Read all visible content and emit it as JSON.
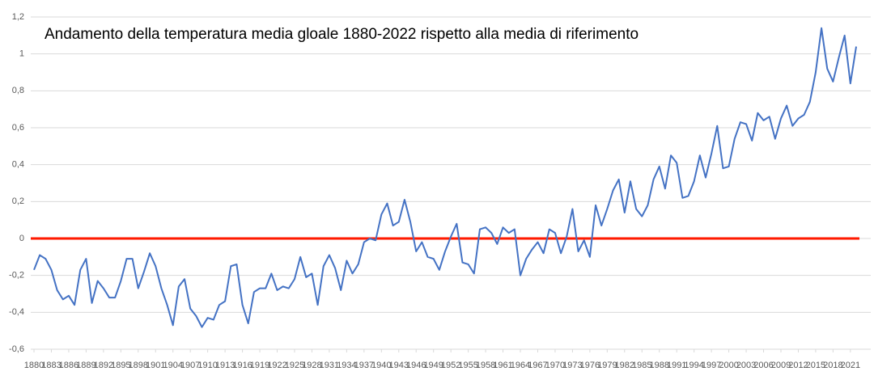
{
  "chart_data": {
    "type": "line",
    "title": "Andamento della temperatura media gloale 1880-2022 rispetto alla media di riferimento",
    "x": [
      1880,
      1881,
      1882,
      1883,
      1884,
      1885,
      1886,
      1887,
      1888,
      1889,
      1890,
      1891,
      1892,
      1893,
      1894,
      1895,
      1896,
      1897,
      1898,
      1899,
      1900,
      1901,
      1902,
      1903,
      1904,
      1905,
      1906,
      1907,
      1908,
      1909,
      1910,
      1911,
      1912,
      1913,
      1914,
      1915,
      1916,
      1917,
      1918,
      1919,
      1920,
      1921,
      1922,
      1923,
      1924,
      1925,
      1926,
      1927,
      1928,
      1929,
      1930,
      1931,
      1932,
      1933,
      1934,
      1935,
      1936,
      1937,
      1938,
      1939,
      1940,
      1941,
      1942,
      1943,
      1944,
      1945,
      1946,
      1947,
      1948,
      1949,
      1950,
      1951,
      1952,
      1953,
      1954,
      1955,
      1956,
      1957,
      1958,
      1959,
      1960,
      1961,
      1962,
      1963,
      1964,
      1965,
      1966,
      1967,
      1968,
      1969,
      1970,
      1971,
      1972,
      1973,
      1974,
      1975,
      1976,
      1977,
      1978,
      1979,
      1980,
      1981,
      1982,
      1983,
      1984,
      1985,
      1986,
      1987,
      1988,
      1989,
      1990,
      1991,
      1992,
      1993,
      1994,
      1995,
      1996,
      1997,
      1998,
      1999,
      2000,
      2001,
      2002,
      2003,
      2004,
      2005,
      2006,
      2007,
      2008,
      2009,
      2010,
      2011,
      2012,
      2013,
      2014,
      2015,
      2016,
      2017,
      2018,
      2019,
      2020,
      2021,
      2022
    ],
    "series": [
      {
        "color": "#4472c4",
        "values": [
          -0.17,
          -0.09,
          -0.11,
          -0.17,
          -0.28,
          -0.33,
          -0.31,
          -0.36,
          -0.17,
          -0.11,
          -0.35,
          -0.23,
          -0.27,
          -0.32,
          -0.32,
          -0.23,
          -0.11,
          -0.11,
          -0.27,
          -0.18,
          -0.08,
          -0.15,
          -0.27,
          -0.36,
          -0.47,
          -0.26,
          -0.22,
          -0.38,
          -0.42,
          -0.48,
          -0.43,
          -0.44,
          -0.36,
          -0.34,
          -0.15,
          -0.14,
          -0.36,
          -0.46,
          -0.29,
          -0.27,
          -0.27,
          -0.19,
          -0.28,
          -0.26,
          -0.27,
          -0.22,
          -0.1,
          -0.21,
          -0.19,
          -0.36,
          -0.15,
          -0.09,
          -0.16,
          -0.28,
          -0.12,
          -0.19,
          -0.14,
          -0.02,
          0,
          -0.01,
          0.13,
          0.19,
          0.07,
          0.09,
          0.21,
          0.09,
          -0.07,
          -0.02,
          -0.1,
          -0.11,
          -0.17,
          -0.07,
          0.01,
          0.08,
          -0.13,
          -0.14,
          -0.19,
          0.05,
          0.06,
          0.03,
          -0.03,
          0.06,
          0.03,
          0.05,
          -0.2,
          -0.11,
          -0.06,
          -0.02,
          -0.08,
          0.05,
          0.03,
          -0.08,
          0.01,
          0.16,
          -0.07,
          -0.01,
          -0.1,
          0.18,
          0.07,
          0.16,
          0.26,
          0.32,
          0.14,
          0.31,
          0.16,
          0.12,
          0.18,
          0.32,
          0.39,
          0.27,
          0.45,
          0.41,
          0.22,
          0.23,
          0.31,
          0.45,
          0.33,
          0.46,
          0.61,
          0.38,
          0.39,
          0.54,
          0.63,
          0.62,
          0.53,
          0.68,
          0.64,
          0.66,
          0.54,
          0.65,
          0.72,
          0.61,
          0.65,
          0.67,
          0.74,
          0.9,
          1.14,
          0.92,
          0.85,
          0.98,
          1.1,
          0.84,
          1.04
        ]
      }
    ],
    "reference_line": {
      "value": 0,
      "color": "#ff1a00"
    },
    "xlim": [
      1880,
      2022
    ],
    "xticks": [
      1880,
      1883,
      1886,
      1889,
      1892,
      1895,
      1898,
      1901,
      1904,
      1907,
      1910,
      1913,
      1916,
      1919,
      1922,
      1925,
      1928,
      1931,
      1934,
      1937,
      1940,
      1943,
      1946,
      1949,
      1952,
      1955,
      1958,
      1961,
      1964,
      1967,
      1970,
      1973,
      1976,
      1979,
      1982,
      1985,
      1988,
      1991,
      1994,
      1997,
      2000,
      2003,
      2006,
      2009,
      2012,
      2015,
      2018,
      2021
    ],
    "ylim": [
      -0.6,
      1.2
    ],
    "yticks": [
      {
        "value": -0.6,
        "label": "-0,6"
      },
      {
        "value": -0.4,
        "label": "-0,4"
      },
      {
        "value": -0.2,
        "label": "-0,2"
      },
      0,
      {
        "value": 0.2,
        "label": "0,2"
      },
      {
        "value": 0.4,
        "label": "0,4"
      },
      {
        "value": 0.6,
        "label": "0,6"
      },
      {
        "value": 0.8,
        "label": "0,8"
      },
      1,
      {
        "value": 1.2,
        "label": "1,2"
      }
    ],
    "grid": true
  }
}
